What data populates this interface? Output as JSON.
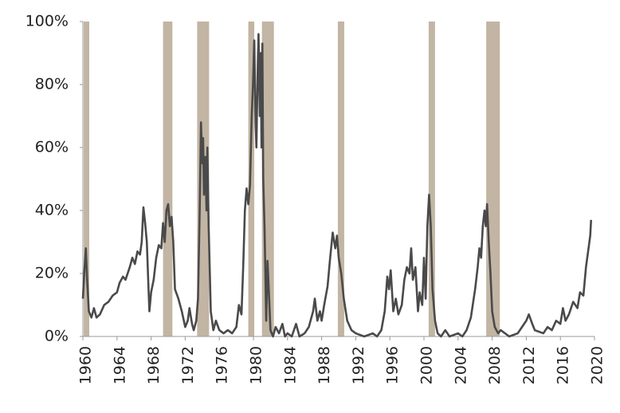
{
  "chart_data": {
    "type": "line",
    "xlim": [
      1960,
      2020
    ],
    "xticks": [
      1960,
      1964,
      1968,
      1972,
      1976,
      1980,
      1984,
      1988,
      1992,
      1996,
      2000,
      2004,
      2008,
      2012,
      2016,
      2020
    ],
    "ylim": [
      0,
      100
    ],
    "yticks": [
      {
        "value": 0,
        "label": "0%"
      },
      {
        "value": 20,
        "label": "20%"
      },
      {
        "value": 40,
        "label": "40%"
      },
      {
        "value": 60,
        "label": "60%"
      },
      {
        "value": 80,
        "label": "80%"
      },
      {
        "value": 100,
        "label": "100%"
      }
    ],
    "shaded_regions": [
      [
        1960.1,
        1960.75
      ],
      [
        1969.4,
        1970.5
      ],
      [
        1973.4,
        1974.8
      ],
      [
        1979.4,
        1980.1
      ],
      [
        1981.0,
        1982.4
      ],
      [
        1989.9,
        1990.65
      ],
      [
        2000.55,
        2001.3
      ],
      [
        2007.3,
        2008.9
      ]
    ],
    "shade_color": "#c2b5a3",
    "color": "#4a4a4a",
    "x": [
      1960.0,
      1960.2,
      1960.35,
      1960.5,
      1960.7,
      1961,
      1961.3,
      1961.6,
      1962,
      1962.5,
      1963,
      1963.5,
      1964,
      1964.3,
      1964.7,
      1965,
      1965.5,
      1965.8,
      1966.1,
      1966.4,
      1966.7,
      1966.9,
      1967.1,
      1967.3,
      1967.5,
      1967.7,
      1967.8,
      1968,
      1968.3,
      1968.6,
      1968.9,
      1969.2,
      1969.4,
      1969.6,
      1969.8,
      1970,
      1970.2,
      1970.4,
      1970.6,
      1970.8,
      1971.2,
      1971.6,
      1972,
      1972.3,
      1972.5,
      1972.8,
      1973,
      1973.3,
      1973.5,
      1973.7,
      1973.85,
      1974,
      1974.1,
      1974.2,
      1974.35,
      1974.5,
      1974.6,
      1974.75,
      1975,
      1975.3,
      1975.6,
      1976,
      1976.5,
      1977,
      1977.5,
      1978,
      1978.3,
      1978.6,
      1978.8,
      1979,
      1979.2,
      1979.4,
      1979.6,
      1979.8,
      1979.95,
      1980.1,
      1980.25,
      1980.35,
      1980.5,
      1980.6,
      1980.75,
      1980.85,
      1980.95,
      1981.05,
      1981.15,
      1981.3,
      1981.5,
      1981.65,
      1981.8,
      1982,
      1982.3,
      1982.6,
      1983,
      1983.4,
      1983.7,
      1984,
      1984.5,
      1985,
      1985.4,
      1986,
      1986.5,
      1987,
      1987.2,
      1987.5,
      1987.8,
      1988,
      1988.3,
      1988.7,
      1989,
      1989.3,
      1989.6,
      1989.8,
      1990,
      1990.3,
      1990.6,
      1991,
      1991.5,
      1992,
      1993,
      1994,
      1994.5,
      1995,
      1995.4,
      1995.7,
      1995.9,
      1996.1,
      1996.4,
      1996.7,
      1997,
      1997.4,
      1997.7,
      1998,
      1998.3,
      1998.5,
      1998.7,
      1999,
      1999.3,
      1999.5,
      1999.8,
      2000,
      2000.2,
      2000.4,
      2000.6,
      2000.8,
      2001,
      2001.3,
      2001.6,
      2002,
      2002.5,
      2003,
      2004,
      2004.5,
      2005,
      2005.5,
      2006,
      2006.3,
      2006.5,
      2006.7,
      2006.9,
      2007.1,
      2007.25,
      2007.4,
      2007.6,
      2007.8,
      2008,
      2008.3,
      2008.7,
      2009,
      2010,
      2011,
      2011.5,
      2012,
      2012.3,
      2012.7,
      2013,
      2014,
      2014.5,
      2015,
      2015.5,
      2016,
      2016.3,
      2016.6,
      2017,
      2017.5,
      2018,
      2018.3,
      2018.7,
      2019,
      2019.3,
      2019.5,
      2019.6
    ],
    "values": [
      12,
      22,
      28,
      18,
      8,
      6,
      9,
      6,
      7,
      10,
      11,
      13,
      14,
      17,
      19,
      18,
      22,
      25,
      23,
      27,
      26,
      30,
      41,
      36,
      30,
      15,
      8,
      14,
      18,
      25,
      29,
      28,
      36,
      30,
      40,
      42,
      35,
      38,
      30,
      15,
      12,
      8,
      3,
      5,
      9,
      4,
      2,
      5,
      12,
      40,
      68,
      55,
      63,
      45,
      57,
      40,
      60,
      35,
      8,
      2,
      5,
      2,
      1,
      2,
      1,
      3,
      10,
      7,
      22,
      40,
      47,
      42,
      48,
      70,
      80,
      94,
      68,
      60,
      85,
      96,
      70,
      90,
      60,
      93,
      50,
      35,
      5,
      24,
      15,
      2,
      0,
      3,
      1,
      4,
      0,
      1,
      0,
      4,
      0,
      1,
      3,
      8,
      12,
      5,
      8,
      5,
      10,
      16,
      25,
      33,
      28,
      32,
      25,
      20,
      12,
      5,
      2,
      1,
      0,
      1,
      0,
      2,
      8,
      19,
      15,
      21,
      8,
      12,
      7,
      10,
      18,
      22,
      20,
      28,
      18,
      22,
      8,
      14,
      10,
      25,
      12,
      35,
      45,
      35,
      15,
      5,
      1,
      0,
      2,
      0,
      1,
      0,
      2,
      6,
      15,
      22,
      28,
      25,
      35,
      40,
      35,
      42,
      30,
      20,
      8,
      3,
      1,
      2,
      0,
      1,
      3,
      5,
      7,
      4,
      2,
      1,
      3,
      2,
      5,
      4,
      9,
      5,
      7,
      11,
      9,
      14,
      13,
      22,
      28,
      32,
      37
    ]
  }
}
